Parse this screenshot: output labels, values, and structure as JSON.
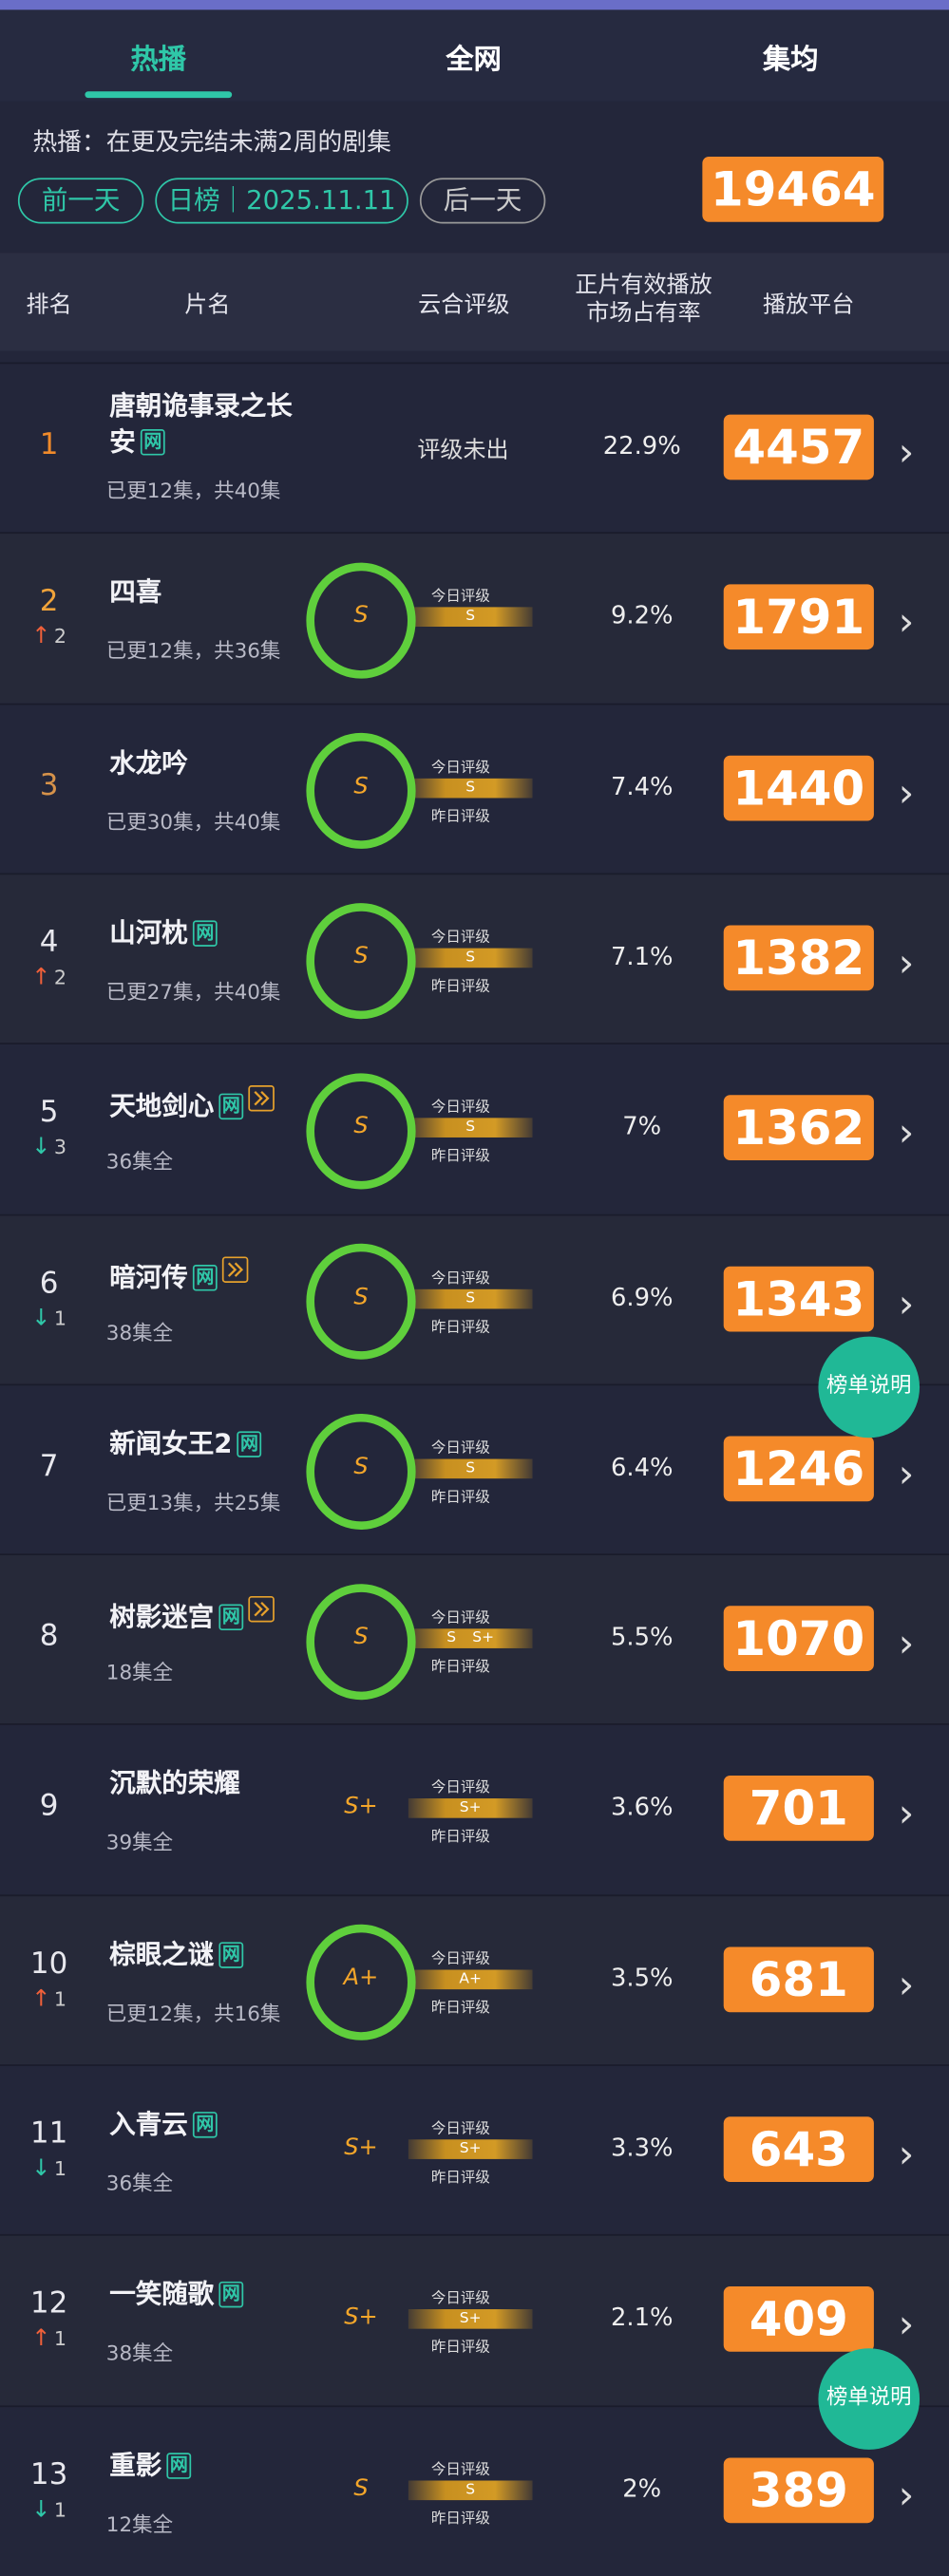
{
  "tabs": [
    "热播",
    "全网",
    "集均"
  ],
  "note": "热播：在更及完结未满2周的剧集",
  "buttons": [
    "前一天",
    "日榜｜2025.11.11",
    "后一天"
  ],
  "total": 19464,
  "headers": {
    "rank": "排名",
    "title": "片名",
    "rating": "云合评级",
    "share": [
      "正片有效播放",
      "市场占有率"
    ],
    "platform": "播放平台"
  },
  "help": "榜单说明",
  "rows": [
    {
      "rank": 1,
      "title": "唐朝诡事录之长安",
      "tags": [
        "网"
      ],
      "play": false,
      "episodes": "已更12集，共40集",
      "rating": "评级未出",
      "share": "22.9%",
      "platform": 4457
    },
    {
      "rank": 2,
      "change": {
        "dir": "up",
        "value": 2
      },
      "title": "四喜",
      "tags": [],
      "play": false,
      "episodes": "已更12集，共36集",
      "rating": "S",
      "bar": [
        "S"
      ],
      "bar_labels": [
        "今日评级"
      ],
      "share": "9.2%",
      "platform": 1791
    },
    {
      "rank": 3,
      "title": "水龙吟",
      "tags": [],
      "play": false,
      "episodes": "已更30集，共40集",
      "rating": "S",
      "bar": [
        "S"
      ],
      "bar_labels": [
        "今日评级",
        "昨日评级"
      ],
      "share": "7.4%",
      "platform": 1440
    },
    {
      "rank": 4,
      "change": {
        "dir": "up",
        "value": 2
      },
      "title": "山河枕",
      "tags": [
        "网"
      ],
      "play": false,
      "episodes": "已更27集，共40集",
      "rating": "S",
      "bar": [
        "S"
      ],
      "bar_labels": [
        "今日评级",
        "昨日评级"
      ],
      "share": "7.1%",
      "platform": 1382
    },
    {
      "rank": 5,
      "change": {
        "dir": "down",
        "value": 3
      },
      "title": "天地剑心",
      "tags": [
        "网"
      ],
      "play": true,
      "episodes": "36集全",
      "rating": "S",
      "bar": [
        "S"
      ],
      "bar_labels": [
        "今日评级",
        "昨日评级"
      ],
      "share": "7%",
      "platform": 1362
    },
    {
      "rank": 6,
      "change": {
        "dir": "down",
        "value": 1
      },
      "title": "暗河传",
      "tags": [
        "网"
      ],
      "play": true,
      "episodes": "38集全",
      "rating": "S",
      "bar": [
        "S"
      ],
      "bar_labels": [
        "今日评级",
        "昨日评级"
      ],
      "share": "6.9%",
      "platform": 1343
    },
    {
      "rank": 7,
      "title": "新闻女王2",
      "tags": [
        "网"
      ],
      "play": false,
      "episodes": "已更13集，共25集",
      "rating": "S",
      "bar": [
        "S"
      ],
      "bar_labels": [
        "今日评级",
        "昨日评级"
      ],
      "share": "6.4%",
      "platform": 1246
    },
    {
      "rank": 8,
      "title": "树影迷宫",
      "tags": [
        "网"
      ],
      "play": true,
      "episodes": "18集全",
      "rating": "S",
      "bar": [
        "S",
        "S+"
      ],
      "bar_labels": [
        "今日评级",
        "昨日评级"
      ],
      "share": "5.5%",
      "platform": 1070
    },
    {
      "rank": 9,
      "title": "沉默的荣耀",
      "tags": [],
      "play": false,
      "episodes": "39集全",
      "rating": "S+",
      "bar": [
        "S+"
      ],
      "bar_labels": [
        "今日评级",
        "昨日评级"
      ],
      "share": "3.6%",
      "platform": 701
    },
    {
      "rank": 10,
      "change": {
        "dir": "up",
        "value": 1
      },
      "title": "棕眼之谜",
      "tags": [
        "网"
      ],
      "play": false,
      "episodes": "已更12集，共16集",
      "rating": "A+",
      "bar": [
        "A+"
      ],
      "bar_labels": [
        "今日评级",
        "昨日评级"
      ],
      "share": "3.5%",
      "platform": 681
    },
    {
      "rank": 11,
      "change": {
        "dir": "down",
        "value": 1
      },
      "title": "入青云",
      "tags": [
        "网"
      ],
      "play": false,
      "episodes": "36集全",
      "rating": "S+",
      "bar": [
        "S+"
      ],
      "bar_labels": [
        "今日评级",
        "昨日评级"
      ],
      "share": "3.3%",
      "platform": 643
    },
    {
      "rank": 12,
      "change": {
        "dir": "up",
        "value": 1
      },
      "title": "一笑随歌",
      "tags": [
        "网"
      ],
      "play": false,
      "episodes": "38集全",
      "rating": "S+",
      "bar": [
        "S+"
      ],
      "bar_labels": [
        "今日评级",
        "昨日评级"
      ],
      "share": "2.1%",
      "platform": 409
    },
    {
      "rank": 13,
      "change": {
        "dir": "down",
        "value": 1
      },
      "title": "重影",
      "tags": [
        "网"
      ],
      "play": false,
      "episodes": "12集全",
      "rating": "S",
      "bar": [
        "S"
      ],
      "bar_labels": [
        "今日评级",
        "昨日评级"
      ],
      "share": "2%",
      "platform": 389
    }
  ]
}
